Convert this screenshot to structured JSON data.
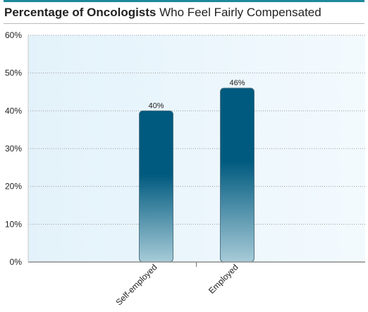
{
  "title": {
    "bold": "Percentage of Oncologists",
    "rest": " Who Feel Fairly Compensated"
  },
  "colors": {
    "title_rule_accent": "#1c8a9c",
    "bar_dark": "#005a7f",
    "bar_light": "#a7cbd8",
    "plot_bg_left": "#e3f2fa",
    "plot_bg_right": "#f3fafe"
  },
  "chart_data": {
    "type": "bar",
    "title": "Percentage of Oncologists Who Feel Fairly Compensated",
    "categories": [
      "Self-employed",
      "Employed"
    ],
    "values": [
      40,
      46
    ],
    "value_labels": [
      "40%",
      "46%"
    ],
    "y_ticks": [
      "0%",
      "10%",
      "20%",
      "30%",
      "40%",
      "50%",
      "60%"
    ],
    "ylim": [
      0,
      60
    ],
    "grid": "horizontal dotted",
    "xlabel": "",
    "ylabel": ""
  }
}
